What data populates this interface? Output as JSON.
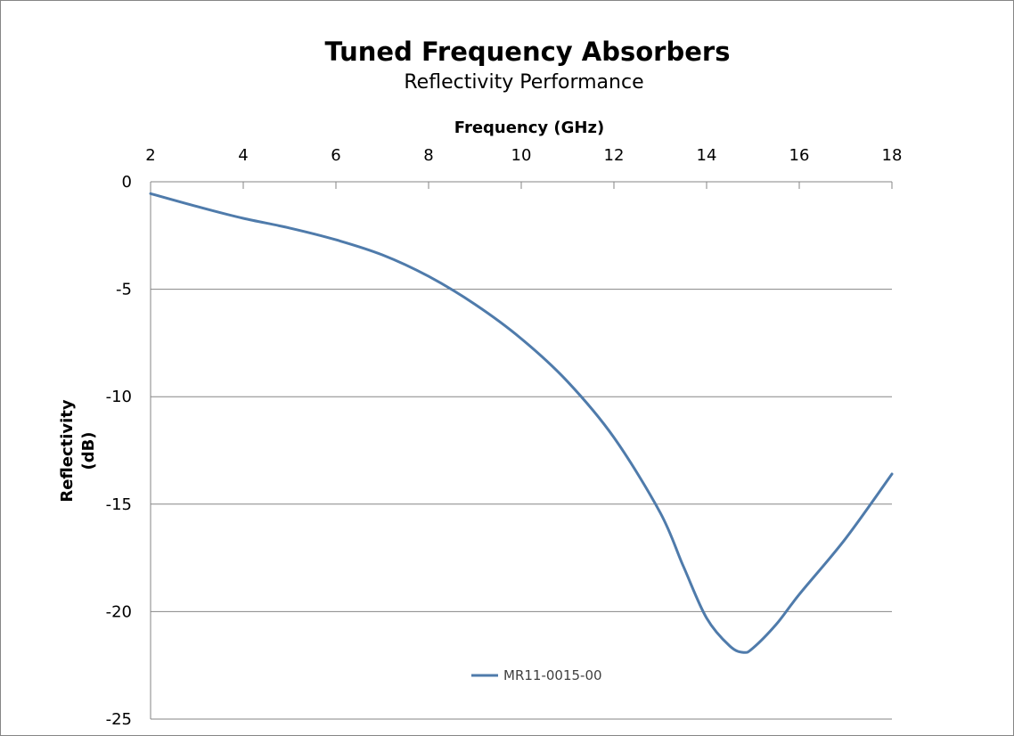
{
  "chart_data": {
    "type": "line",
    "title": "Tuned Frequency Absorbers",
    "subtitle": "Reflectivity Performance",
    "xlabel": "Frequency (GHz)",
    "ylabel_lines": [
      "Reflectivity",
      "(dB)"
    ],
    "xlim": [
      2,
      18
    ],
    "ylim": [
      -25,
      0
    ],
    "x_ticks": [
      2,
      4,
      6,
      8,
      10,
      12,
      14,
      16,
      18
    ],
    "y_ticks": [
      0,
      -5,
      -10,
      -15,
      -20,
      -25
    ],
    "x_axis_position": "top",
    "grid": {
      "horizontal": true,
      "vertical": false
    },
    "legend_position": "bottom-center",
    "series": [
      {
        "name": "MR11-0015-00",
        "color": "#4f7bab",
        "x": [
          2,
          3,
          4,
          5,
          6,
          7,
          8,
          9,
          10,
          11,
          12,
          13,
          13.5,
          14,
          14.5,
          14.8,
          15,
          15.5,
          16,
          17,
          18
        ],
        "y": [
          -0.55,
          -1.15,
          -1.7,
          -2.15,
          -2.7,
          -3.4,
          -4.4,
          -5.7,
          -7.3,
          -9.3,
          -11.9,
          -15.4,
          -17.9,
          -20.3,
          -21.6,
          -21.9,
          -21.7,
          -20.6,
          -19.2,
          -16.6,
          -13.6
        ]
      }
    ]
  }
}
